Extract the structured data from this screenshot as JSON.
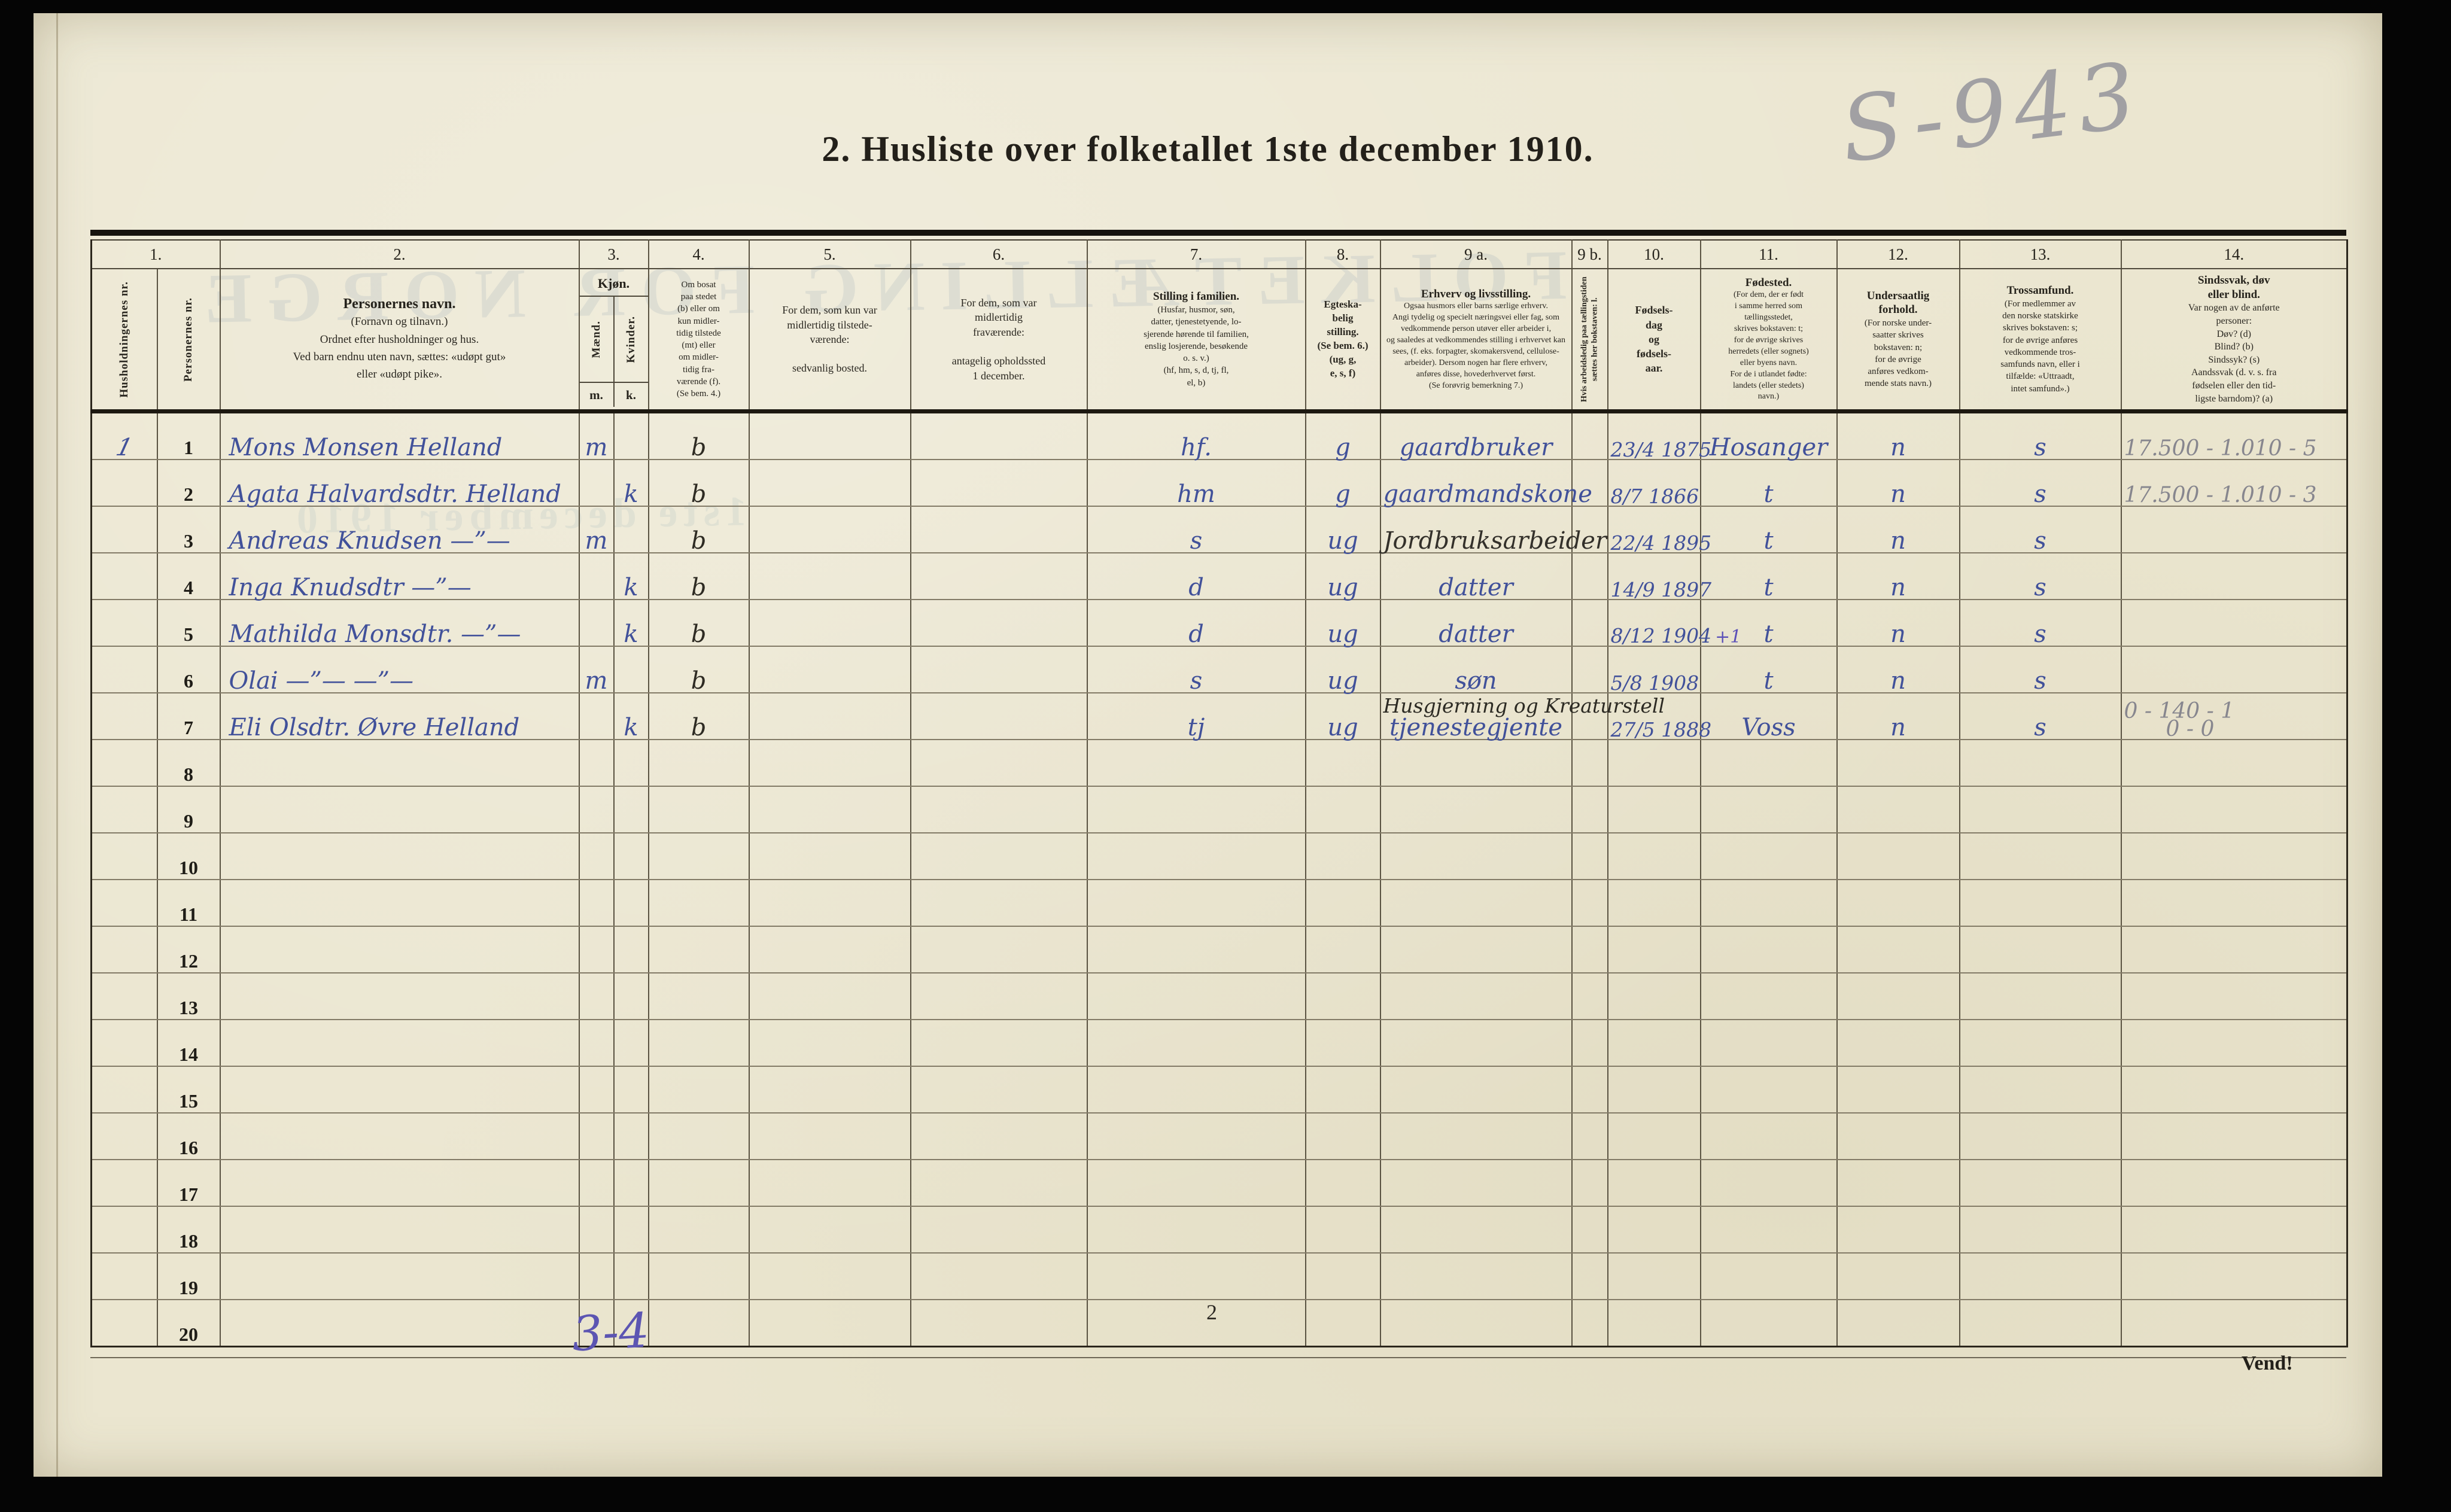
{
  "page": {
    "title": "2. Husliste over folketallet 1ste december 1910.",
    "pencil_mark_top_right": "S-943",
    "ink_mark_bottom": "3-4",
    "page_number": "2",
    "turn_note": "Vend!",
    "bleedthrough_line1": "FOLKETÆLLING FOR NORGE",
    "bleedthrough_line2": "1ste december 1910"
  },
  "table": {
    "header": {
      "c1": {
        "num": "1.",
        "hush": "Husholdningernes nr.",
        "pers": "Personernes nr."
      },
      "c2": {
        "num": "2.",
        "title": "Personernes navn.",
        "text": "(Fornavn og tilnavn.)\nOrdnet efter husholdninger og hus.\nVed barn endnu uten navn, sættes: «udøpt gut»\neller «udøpt pike»."
      },
      "c3": {
        "num": "3.",
        "title": "Kjøn.",
        "male": "Mænd.",
        "female": "Kvinder.",
        "male_abbr": "m.",
        "female_abbr": "k."
      },
      "c4": {
        "num": "4.",
        "text": "Om bosat\npaa stedet\n(b) eller om\nkun midler-\ntidig tilstede\n(mt) eller\nom midler-\ntidig fra-\nværende (f).\n(Se bem. 4.)"
      },
      "c5": {
        "num": "5.",
        "text": "For dem, som kun var\nmidlertidig tilstede-\nværende:\n\nsedvanlig bosted."
      },
      "c6": {
        "num": "6.",
        "text": "For dem, som var\nmidlertidig\nfraværende:\n\nantagelig opholdssted\n1 december."
      },
      "c7": {
        "num": "7.",
        "title": "Stilling i familien.",
        "text": "(Husfar, husmor, søn,\ndatter, tjenestetyende, lo-\nsjerende hørende til familien,\nenslig losjerende, besøkende\no. s. v.)\n(hf, hm, s, d, tj, fl,\nel, b)"
      },
      "c8": {
        "num": "8.",
        "text": "Egteska-\nbelig\nstilling.\n(Se bem. 6.)\n(ug, g,\ne, s, f)"
      },
      "c9a": {
        "num": "9 a.",
        "title": "Erhverv og livsstilling.",
        "text": "Ogsaa husmors eller barns særlige erhverv.\nAngi tydelig og specielt næringsvei eller fag, som\nvedkommende person utøver eller arbeider i,\nog saaledes at vedkommendes stilling i erhvervet kan\nsees, (f. eks. forpagter, skomakersvend, cellulose-\narbeider).  Dersom nogen har flere erhverv,\nanføres disse, hovederhvervet først.\n(Se forøvrig bemerkning 7.)"
      },
      "c9b": {
        "num": "9 b.",
        "text": "Hvis arbeidsledig paa tællingstiden sættes her bokstaven: l."
      },
      "c10": {
        "num": "10.",
        "text": "Fødsels-\ndag\nog\nfødsels-\naar."
      },
      "c11": {
        "num": "11.",
        "title": "Fødested.",
        "text": "(For dem, der er født\ni samme herred som\ntællingsstedet,\nskrives bokstaven: t;\nfor de øvrige skrives\nherredets (eller sognets)\neller byens navn.\nFor de i utlandet fødte:\nlandets (eller stedets)\nnavn.)"
      },
      "c12": {
        "num": "12.",
        "title": "Undersaatlig\nforhold.",
        "text": "(For norske under-\nsaatter skrives\nbokstaven: n;\nfor de øvrige\nanføres vedkom-\nmende stats navn.)"
      },
      "c13": {
        "num": "13.",
        "title": "Trossamfund.",
        "text": "(For medlemmer av\nden norske statskirke\nskrives bokstaven: s;\nfor de øvrige anføres\nvedkommende tros-\nsamfunds navn, eller i\ntilfælde: «Uttraadt,\nintet samfund».)"
      },
      "c14": {
        "num": "14.",
        "title": "Sindssvak, døv\neller blind.",
        "text": "Var nogen av de anførte\npersoner:\nDøv?            (d)\nBlind?          (b)\nSindssyk?   (s)\nAandssvak (d. v. s. fra\nfødselen eller den tid-\nligste barndom)?  (a)"
      }
    },
    "rows": [
      {
        "hh": "1",
        "nr": "1",
        "name": "Mons Monsen Helland",
        "m": "m",
        "k": "",
        "bosat": "b",
        "bosted5": "",
        "opphold6": "",
        "stilling": "hf.",
        "egteskap": "g",
        "erhverv": "gaardbruker",
        "ledig": "",
        "fodt": "23/4 1875",
        "fodested": "Hosanger",
        "undersaat": "n",
        "tros": "s",
        "merknad": "17.500 - 1.010 - 5"
      },
      {
        "hh": "",
        "nr": "2",
        "name": "Agata Halvardsdtr. Helland",
        "m": "",
        "k": "k",
        "bosat": "b",
        "stilling": "hm",
        "egteskap": "g",
        "erhverv": "gaardmandskone",
        "fodt": "8/7 1866",
        "fodested": "t",
        "undersaat": "n",
        "tros": "s",
        "merknad": "17.500 - 1.010 - 3"
      },
      {
        "hh": "",
        "nr": "3",
        "name": "Andreas Knudsen  —”—",
        "m": "m",
        "k": "",
        "bosat": "b",
        "stilling": "s",
        "egteskap": "ug",
        "erhverv": "Jordbruksarbeider",
        "erhverv_dark": true,
        "fodt": "22/4 1895",
        "fodested": "t",
        "undersaat": "n",
        "tros": "s"
      },
      {
        "hh": "",
        "nr": "4",
        "name": "Inga Knudsdtr  —”—",
        "m": "",
        "k": "k",
        "bosat": "b",
        "stilling": "d",
        "egteskap": "ug",
        "erhverv": "datter",
        "fodt": "14/9 1897",
        "fodested": "t",
        "undersaat": "n",
        "tros": "s"
      },
      {
        "hh": "",
        "nr": "5",
        "name": "Mathilda Monsdtr.  —”—",
        "m": "",
        "k": "k",
        "bosat": "b",
        "stilling": "d",
        "egteskap": "ug",
        "erhverv": "datter",
        "fodt": "8/12 1904",
        "fodt_note": "+1",
        "fodested": "t",
        "undersaat": "n",
        "tros": "s"
      },
      {
        "hh": "",
        "nr": "6",
        "name": "Olai  —”—  —”—",
        "m": "m",
        "k": "",
        "bosat": "b",
        "stilling": "s",
        "egteskap": "ug",
        "erhverv": "søn",
        "fodt": "5/8 1908",
        "fodested": "t",
        "undersaat": "n",
        "tros": "s"
      },
      {
        "hh": "",
        "nr": "7",
        "name": "Eli Olsdtr.  Øvre Helland",
        "m": "",
        "k": "k",
        "bosat": "b",
        "stilling": "tj",
        "egteskap": "ug",
        "erhverv": "tjenestegjente",
        "erhverv_over": "Husgjerning og Kreaturstell",
        "fodt": "27/5 1888",
        "fodested": "Voss",
        "undersaat": "n",
        "tros": "s",
        "merknad": "0 - 140 - 1",
        "merknad2": "0 - 0"
      },
      {
        "nr": "8"
      },
      {
        "nr": "9"
      },
      {
        "nr": "10"
      },
      {
        "nr": "11"
      },
      {
        "nr": "12"
      },
      {
        "nr": "13"
      },
      {
        "nr": "14"
      },
      {
        "nr": "15"
      },
      {
        "nr": "16"
      },
      {
        "nr": "17"
      },
      {
        "nr": "18"
      },
      {
        "nr": "19"
      },
      {
        "nr": "20"
      }
    ]
  }
}
